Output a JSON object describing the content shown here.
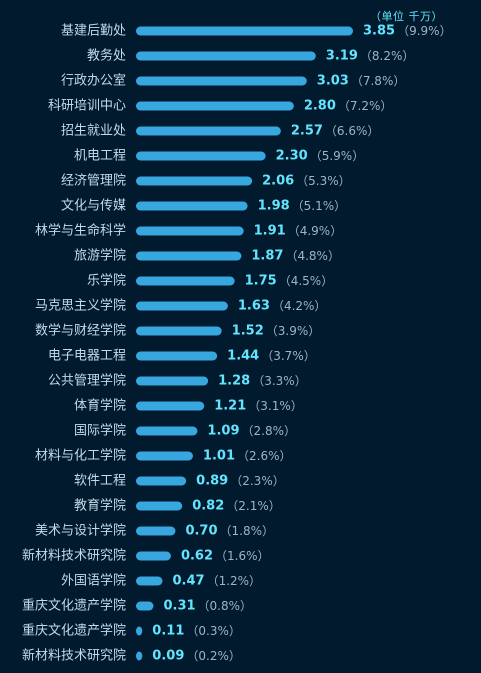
{
  "unit_label": "（单位 千万）",
  "colors": {
    "background": "#011a2e",
    "bar": "#38a7e0",
    "category_text": "#c5d9e8",
    "value_text": "#62e4ff",
    "percent_text": "#9fb4c4"
  },
  "chart_data": {
    "type": "bar",
    "orientation": "horizontal",
    "title": "",
    "unit": "千万",
    "categories": [
      "基建后勤处",
      "教务处",
      "行政办公室",
      "科研培训中心",
      "招生就业处",
      "机电工程",
      "经济管理院",
      "文化与传媒",
      "林学与生命科学",
      "旅游学院",
      "乐学院",
      "马克思主义学院",
      "数学与财经学院",
      "电子电器工程",
      "公共管理学院",
      "体育学院",
      "国际学院",
      "材料与化工学院",
      "软件工程",
      "教育学院",
      "美术与设计学院",
      "新材料技术研究院",
      "外国语学院",
      "重庆文化遗产学院",
      "重庆文化遗产学院",
      "新材料技术研究院"
    ],
    "values": [
      3.85,
      3.19,
      3.03,
      2.8,
      2.57,
      2.3,
      2.06,
      1.98,
      1.91,
      1.87,
      1.75,
      1.63,
      1.52,
      1.44,
      1.28,
      1.21,
      1.09,
      1.01,
      0.89,
      0.82,
      0.7,
      0.62,
      0.47,
      0.31,
      0.11,
      0.09
    ],
    "value_labels": [
      "3.85",
      "3.19",
      "3.03",
      "2.80",
      "2.57",
      "2.30",
      "2.06",
      "1.98",
      "1.91",
      "1.87",
      "1.75",
      "1.63",
      "1.52",
      "1.44",
      "1.28",
      "1.21",
      "1.09",
      "1.01",
      "0.89",
      "0.82",
      "0.70",
      "0.62",
      "0.47",
      "0.31",
      "0.11",
      "0.09"
    ],
    "percent_labels": [
      "（9.9%）",
      "（8.2%）",
      "（7.8%）",
      "（7.2%）",
      "（6.6%）",
      "（5.9%）",
      "（5.3%）",
      "（5.1%）",
      "（4.9%）",
      "（4.8%）",
      "（4.5%）",
      "（4.2%）",
      "（3.9%）",
      "（3.7%）",
      "（3.3%）",
      "（3.1%）",
      "（2.8%）",
      "（2.6%）",
      "（2.3%）",
      "（2.1%）",
      "（1.8%）",
      "（1.6%）",
      "（1.2%）",
      "（0.8%）",
      "（0.3%）",
      "（0.2%）"
    ],
    "xlim": [
      0,
      3.85
    ],
    "grid": false,
    "legend": "none"
  }
}
